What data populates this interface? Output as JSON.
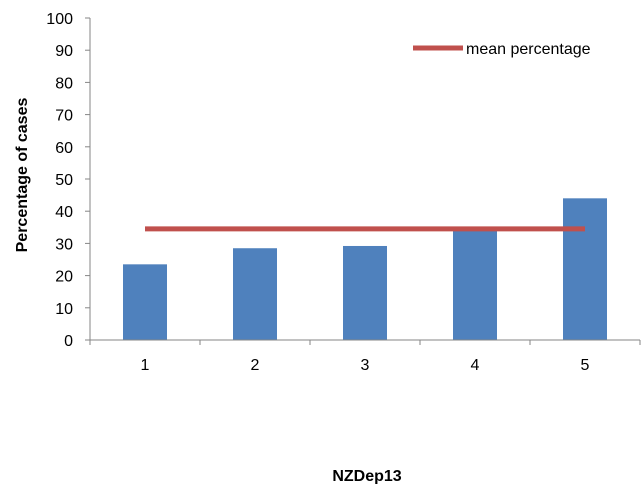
{
  "chart_data": {
    "type": "bar",
    "title": "",
    "xlabel": "NZDep13",
    "ylabel": "Percentage of cases",
    "categories": [
      "1",
      "2",
      "3",
      "4",
      "5"
    ],
    "series": [
      {
        "type": "bar",
        "values": [
          23.5,
          28.5,
          29.2,
          34.5,
          44
        ],
        "color": "#4F81BD"
      },
      {
        "name": "mean percentage",
        "type": "line",
        "values": [
          34.5,
          34.5,
          34.5,
          34.5,
          34.5
        ],
        "color": "#C0504D"
      }
    ],
    "yticks": [
      "0",
      "10",
      "20",
      "30",
      "40",
      "50",
      "60",
      "70",
      "80",
      "90",
      "100"
    ],
    "ylim": [
      0,
      100
    ],
    "grid": false,
    "legend_position": "top-right"
  }
}
